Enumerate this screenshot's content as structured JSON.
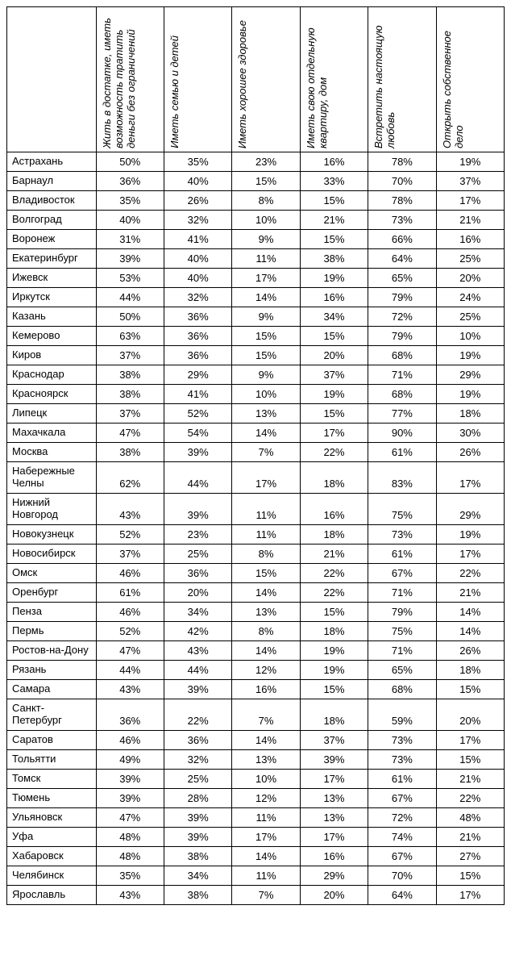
{
  "table": {
    "type": "table",
    "background_color": "#ffffff",
    "border_color": "#000000",
    "font_family": "Arial",
    "font_size_pt": 10,
    "header_font_style": "italic",
    "columns": [
      "Жить в достатке, иметь возможность тратить деньги без ограничений",
      "Иметь семью и детей",
      "Иметь хорошее здоровье",
      "Иметь свою отдельную квартиру, дом",
      "Встретить настоящую любовь",
      "Открыть собственное дело"
    ],
    "rows": [
      {
        "city": "Астрахань",
        "v": [
          "50%",
          "35%",
          "23%",
          "16%",
          "78%",
          "19%"
        ]
      },
      {
        "city": "Барнаул",
        "v": [
          "36%",
          "40%",
          "15%",
          "33%",
          "70%",
          "37%"
        ]
      },
      {
        "city": "Владивосток",
        "v": [
          "35%",
          "26%",
          "8%",
          "15%",
          "78%",
          "17%"
        ]
      },
      {
        "city": "Волгоград",
        "v": [
          "40%",
          "32%",
          "10%",
          "21%",
          "73%",
          "21%"
        ]
      },
      {
        "city": "Воронеж",
        "v": [
          "31%",
          "41%",
          "9%",
          "15%",
          "66%",
          "16%"
        ]
      },
      {
        "city": "Екатеринбург",
        "v": [
          "39%",
          "40%",
          "11%",
          "38%",
          "64%",
          "25%"
        ]
      },
      {
        "city": "Ижевск",
        "v": [
          "53%",
          "40%",
          "17%",
          "19%",
          "65%",
          "20%"
        ]
      },
      {
        "city": "Иркутск",
        "v": [
          "44%",
          "32%",
          "14%",
          "16%",
          "79%",
          "24%"
        ]
      },
      {
        "city": "Казань",
        "v": [
          "50%",
          "36%",
          "9%",
          "34%",
          "72%",
          "25%"
        ]
      },
      {
        "city": "Кемерово",
        "v": [
          "63%",
          "36%",
          "15%",
          "15%",
          "79%",
          "10%"
        ]
      },
      {
        "city": "Киров",
        "v": [
          "37%",
          "36%",
          "15%",
          "20%",
          "68%",
          "19%"
        ]
      },
      {
        "city": "Краснодар",
        "v": [
          "38%",
          "29%",
          "9%",
          "37%",
          "71%",
          "29%"
        ]
      },
      {
        "city": "Красноярск",
        "v": [
          "38%",
          "41%",
          "10%",
          "19%",
          "68%",
          "19%"
        ]
      },
      {
        "city": "Липецк",
        "v": [
          "37%",
          "52%",
          "13%",
          "15%",
          "77%",
          "18%"
        ]
      },
      {
        "city": "Махачкала",
        "v": [
          "47%",
          "54%",
          "14%",
          "17%",
          "90%",
          "30%"
        ]
      },
      {
        "city": "Москва",
        "v": [
          "38%",
          "39%",
          "7%",
          "22%",
          "61%",
          "26%"
        ]
      },
      {
        "city": "Набережные Челны",
        "v": [
          "62%",
          "44%",
          "17%",
          "18%",
          "83%",
          "17%"
        ]
      },
      {
        "city": "Нижний Новгород",
        "v": [
          "43%",
          "39%",
          "11%",
          "16%",
          "75%",
          "29%"
        ]
      },
      {
        "city": "Новокузнецк",
        "v": [
          "52%",
          "23%",
          "11%",
          "18%",
          "73%",
          "19%"
        ]
      },
      {
        "city": "Новосибирск",
        "v": [
          "37%",
          "25%",
          "8%",
          "21%",
          "61%",
          "17%"
        ]
      },
      {
        "city": "Омск",
        "v": [
          "46%",
          "36%",
          "15%",
          "22%",
          "67%",
          "22%"
        ]
      },
      {
        "city": "Оренбург",
        "v": [
          "61%",
          "20%",
          "14%",
          "22%",
          "71%",
          "21%"
        ]
      },
      {
        "city": "Пенза",
        "v": [
          "46%",
          "34%",
          "13%",
          "15%",
          "79%",
          "14%"
        ]
      },
      {
        "city": "Пермь",
        "v": [
          "52%",
          "42%",
          "8%",
          "18%",
          "75%",
          "14%"
        ]
      },
      {
        "city": "Ростов-на-Дону",
        "v": [
          "47%",
          "43%",
          "14%",
          "19%",
          "71%",
          "26%"
        ]
      },
      {
        "city": "Рязань",
        "v": [
          "44%",
          "44%",
          "12%",
          "19%",
          "65%",
          "18%"
        ]
      },
      {
        "city": "Самара",
        "v": [
          "43%",
          "39%",
          "16%",
          "15%",
          "68%",
          "15%"
        ]
      },
      {
        "city": "Санкт-Петербург",
        "v": [
          "36%",
          "22%",
          "7%",
          "18%",
          "59%",
          "20%"
        ]
      },
      {
        "city": "Саратов",
        "v": [
          "46%",
          "36%",
          "14%",
          "37%",
          "73%",
          "17%"
        ]
      },
      {
        "city": "Тольятти",
        "v": [
          "49%",
          "32%",
          "13%",
          "39%",
          "73%",
          "15%"
        ]
      },
      {
        "city": "Томск",
        "v": [
          "39%",
          "25%",
          "10%",
          "17%",
          "61%",
          "21%"
        ]
      },
      {
        "city": "Тюмень",
        "v": [
          "39%",
          "28%",
          "12%",
          "13%",
          "67%",
          "22%"
        ]
      },
      {
        "city": "Ульяновск",
        "v": [
          "47%",
          "39%",
          "11%",
          "13%",
          "72%",
          "48%"
        ]
      },
      {
        "city": "Уфа",
        "v": [
          "48%",
          "39%",
          "17%",
          "17%",
          "74%",
          "21%"
        ]
      },
      {
        "city": "Хабаровск",
        "v": [
          "48%",
          "38%",
          "14%",
          "16%",
          "67%",
          "27%"
        ]
      },
      {
        "city": "Челябинск",
        "v": [
          "35%",
          "34%",
          "11%",
          "29%",
          "70%",
          "15%"
        ]
      },
      {
        "city": "Ярославль",
        "v": [
          "43%",
          "38%",
          "7%",
          "20%",
          "64%",
          "17%"
        ]
      }
    ]
  }
}
